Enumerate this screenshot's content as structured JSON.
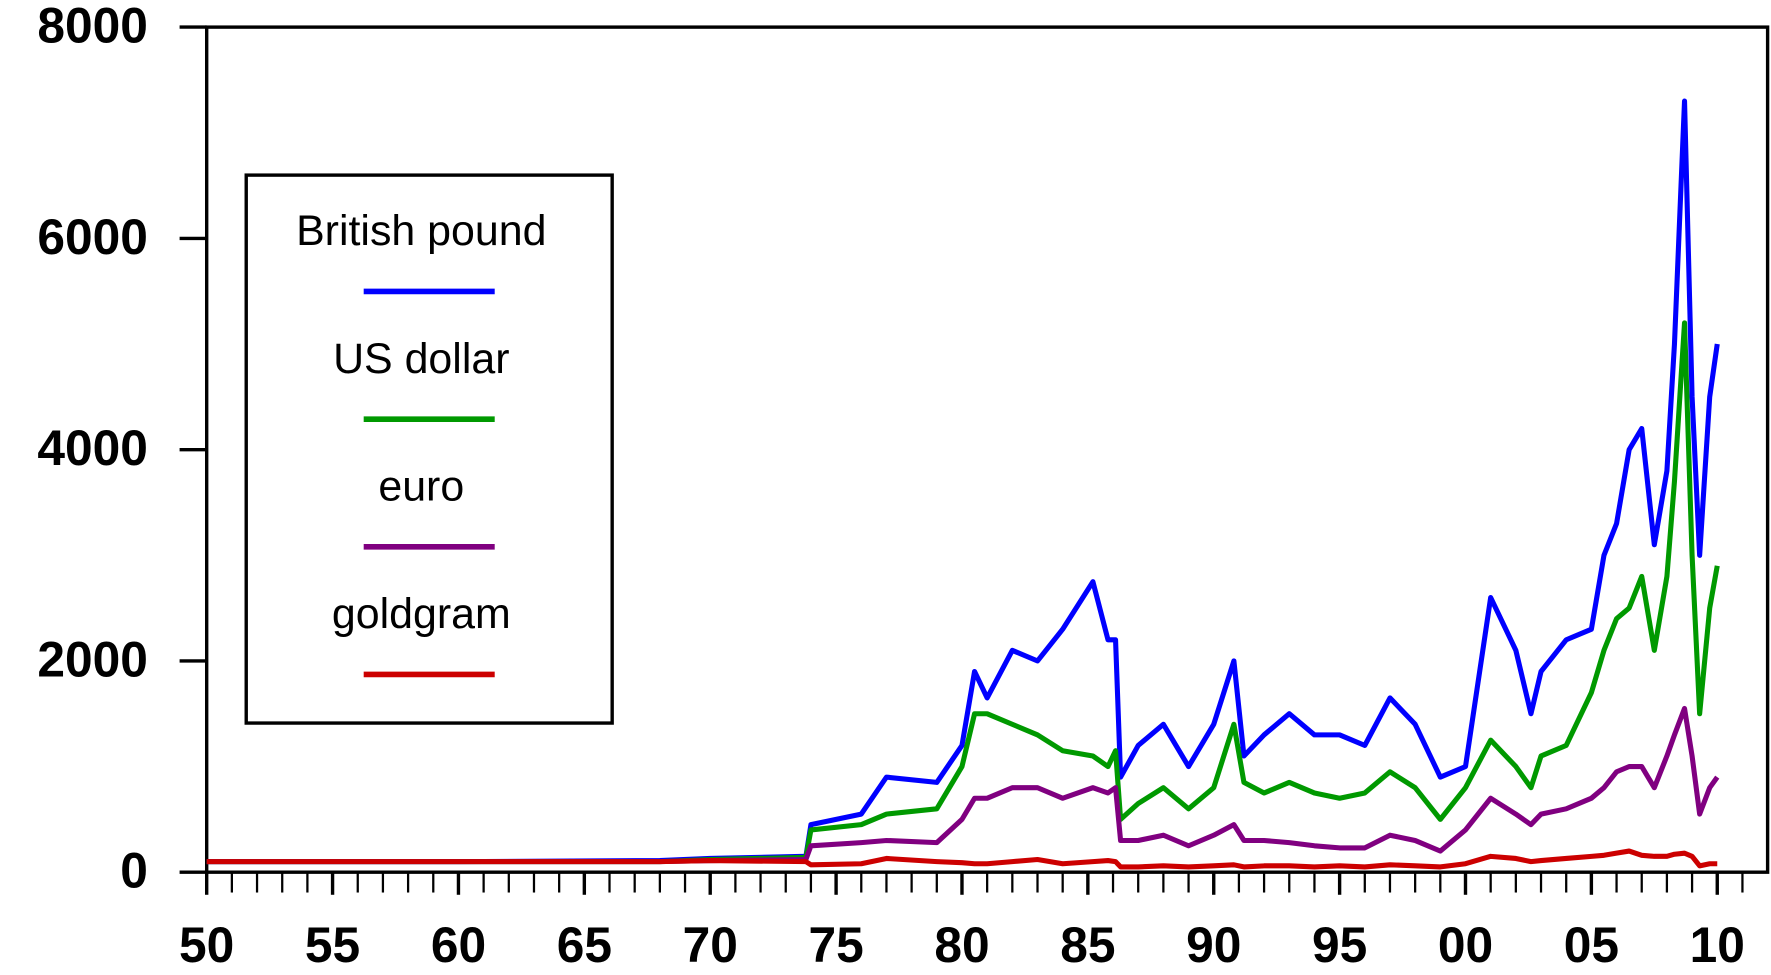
{
  "chart_data": {
    "type": "line",
    "x": [
      1950,
      1960,
      1968,
      1970,
      1973.8,
      1974,
      1976,
      1977,
      1979,
      1980,
      1980.5,
      1981,
      1982,
      1983,
      1984,
      1985.2,
      1985.8,
      1986.1,
      1986.3,
      1987,
      1988,
      1989,
      1990,
      1990.8,
      1991.2,
      1992,
      1993,
      1994,
      1995,
      1996,
      1997,
      1998,
      1999,
      2000,
      2001,
      2002,
      2002.6,
      2003,
      2004,
      2005,
      2005.5,
      2006,
      2006.5,
      2007,
      2007.5,
      2008,
      2008.3,
      2008.7,
      2009,
      2009.3,
      2009.7,
      2010
    ],
    "series": [
      {
        "name": "British pound",
        "color": "#0000ff",
        "values": [
          100,
          100,
          110,
          130,
          150,
          450,
          550,
          900,
          850,
          1200,
          1900,
          1650,
          2100,
          2000,
          2300,
          2750,
          2200,
          2200,
          900,
          1200,
          1400,
          1000,
          1400,
          2000,
          1100,
          1300,
          1500,
          1300,
          1300,
          1200,
          1650,
          1400,
          900,
          1000,
          2600,
          2100,
          1500,
          1900,
          2200,
          2300,
          3000,
          3300,
          4000,
          4200,
          3100,
          3800,
          5000,
          7300,
          4500,
          3000,
          4500,
          5000
        ]
      },
      {
        "name": "US dollar",
        "color": "#009900",
        "values": [
          100,
          100,
          100,
          120,
          140,
          400,
          450,
          550,
          600,
          1000,
          1500,
          1500,
          1400,
          1300,
          1150,
          1100,
          1000,
          1150,
          500,
          650,
          800,
          600,
          800,
          1400,
          850,
          750,
          850,
          750,
          700,
          750,
          950,
          800,
          500,
          800,
          1250,
          1000,
          800,
          1100,
          1200,
          1700,
          2100,
          2400,
          2500,
          2800,
          2100,
          2800,
          3700,
          5200,
          3000,
          1500,
          2500,
          2900
        ]
      },
      {
        "name": "euro",
        "color": "#800080",
        "values": [
          100,
          100,
          100,
          110,
          120,
          250,
          280,
          300,
          280,
          500,
          700,
          700,
          800,
          800,
          700,
          800,
          750,
          800,
          300,
          300,
          350,
          250,
          350,
          450,
          300,
          300,
          280,
          250,
          230,
          230,
          350,
          300,
          200,
          400,
          700,
          550,
          450,
          550,
          600,
          700,
          800,
          950,
          1000,
          1000,
          800,
          1100,
          1300,
          1550,
          1100,
          550,
          800,
          900
        ]
      },
      {
        "name": "goldgram",
        "color": "#cc0000",
        "values": [
          100,
          100,
          100,
          110,
          100,
          70,
          80,
          130,
          100,
          90,
          80,
          80,
          100,
          120,
          80,
          100,
          110,
          100,
          50,
          50,
          60,
          50,
          60,
          70,
          50,
          60,
          60,
          50,
          60,
          50,
          70,
          60,
          50,
          80,
          150,
          130,
          100,
          110,
          130,
          150,
          160,
          180,
          200,
          160,
          150,
          150,
          170,
          180,
          150,
          60,
          80,
          80
        ]
      }
    ],
    "xlim": [
      1950,
      2012
    ],
    "xticks": [
      {
        "value": 1950,
        "label": "50"
      },
      {
        "value": 1955,
        "label": "55"
      },
      {
        "value": 1960,
        "label": "60"
      },
      {
        "value": 1965,
        "label": "65"
      },
      {
        "value": 1970,
        "label": "70"
      },
      {
        "value": 1975,
        "label": "75"
      },
      {
        "value": 1980,
        "label": "80"
      },
      {
        "value": 1985,
        "label": "85"
      },
      {
        "value": 1990,
        "label": "90"
      },
      {
        "value": 1995,
        "label": "95"
      },
      {
        "value": 2000,
        "label": "00"
      },
      {
        "value": 2005,
        "label": "05"
      },
      {
        "value": 2010,
        "label": "10"
      }
    ],
    "xminorticks": [
      1951,
      1952,
      1953,
      1954,
      1956,
      1957,
      1958,
      1959,
      1961,
      1962,
      1963,
      1964,
      1966,
      1967,
      1968,
      1969,
      1971,
      1972,
      1973,
      1974,
      1976,
      1977,
      1978,
      1979,
      1981,
      1982,
      1983,
      1984,
      1986,
      1987,
      1988,
      1989,
      1991,
      1992,
      1993,
      1994,
      1996,
      1997,
      1998,
      1999,
      2001,
      2002,
      2003,
      2004,
      2006,
      2007,
      2008,
      2009,
      2011
    ],
    "ylim": [
      0,
      8000
    ],
    "yticks": [
      0,
      2000,
      4000,
      6000,
      8000
    ],
    "legend": "upper left",
    "grid": false
  }
}
